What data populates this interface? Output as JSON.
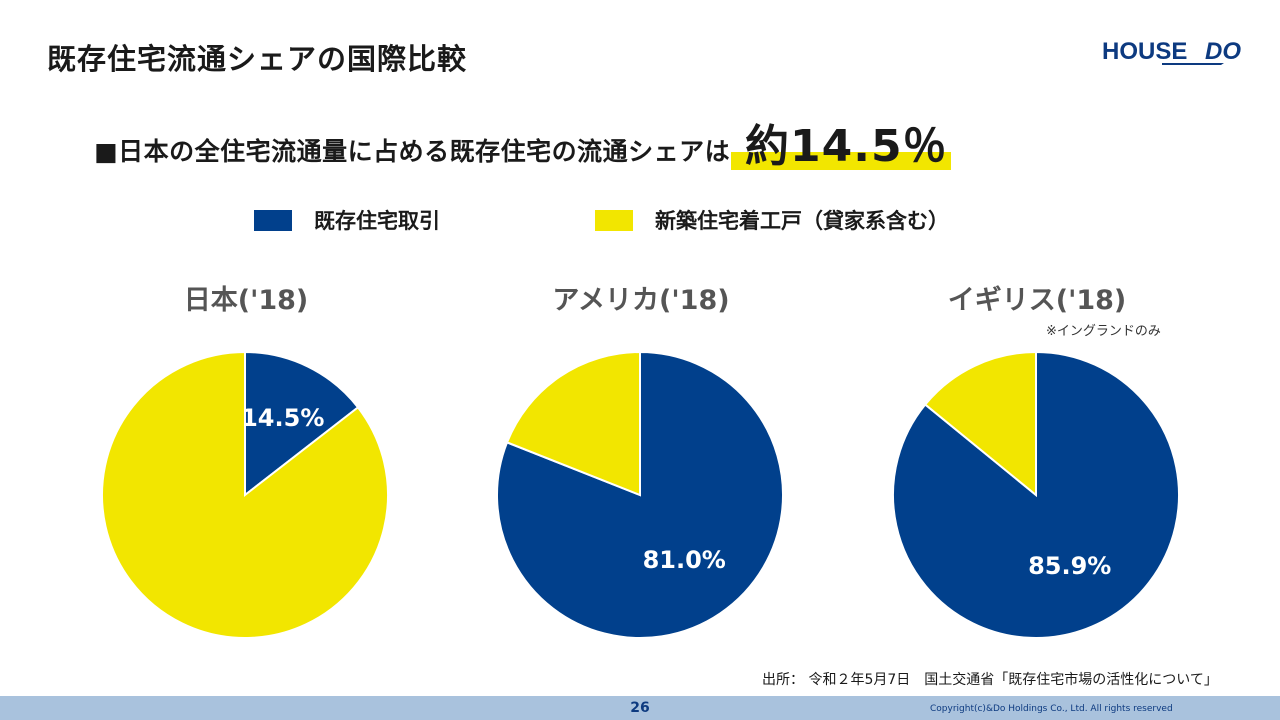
{
  "page_title": "既存住宅流通シェアの国際比較",
  "logo": {
    "text_a": "HOUSE",
    "text_b": "DO"
  },
  "headline": "■日本の全住宅流通量に占める既存住宅の流通シェアは",
  "highlight": "約14.5％",
  "colors": {
    "existing": "#01408c",
    "new": "#f2e600",
    "brand": "#0d3a80"
  },
  "legend": [
    {
      "label": "既存住宅取引",
      "color": "#01408c"
    },
    {
      "label": "新築住宅着工戸（貸家系含む）",
      "color": "#f2e600"
    }
  ],
  "chart_data": [
    {
      "type": "pie",
      "title": "日本('18)",
      "slices": [
        {
          "name": "既存住宅取引",
          "value": 14.5,
          "label": "14.5%"
        },
        {
          "name": "新築住宅着工戸（貸家系含む）",
          "value": 85.5,
          "label": ""
        }
      ]
    },
    {
      "type": "pie",
      "title": "アメリカ('18)",
      "slices": [
        {
          "name": "既存住宅取引",
          "value": 81.0,
          "label": "81.0%"
        },
        {
          "name": "新築住宅着工戸（貸家系含む）",
          "value": 19.0,
          "label": ""
        }
      ]
    },
    {
      "type": "pie",
      "title": "イギリス('18)",
      "note": "※イングランドのみ",
      "slices": [
        {
          "name": "既存住宅取引",
          "value": 85.9,
          "label": "85.9%"
        },
        {
          "name": "新築住宅着工戸（貸家系含む）",
          "value": 14.1,
          "label": ""
        }
      ]
    }
  ],
  "source": "出所： 令和２年5月7日　国土交通省「既存住宅市場の活性化について」",
  "footer": {
    "page_number": "26",
    "copyright": "Copyright(c)&Do Holdings Co., Ltd. All rights reserved"
  }
}
